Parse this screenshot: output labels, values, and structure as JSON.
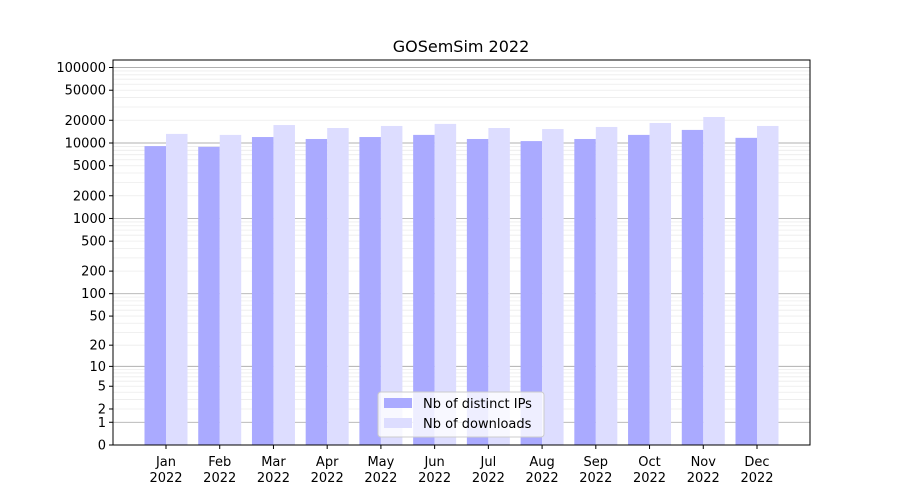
{
  "chart_data": {
    "type": "bar",
    "title": "GOSemSim 2022",
    "xlabel": "",
    "ylabel": "",
    "yscale": "log (symlog-like, value+1)",
    "ylim": [
      0,
      126000
    ],
    "yticks": [
      0,
      1,
      2,
      5,
      10,
      20,
      50,
      100,
      200,
      500,
      1000,
      2000,
      5000,
      10000,
      20000,
      50000,
      100000
    ],
    "grid": true,
    "legend_position": "bottom-center",
    "categories": [
      "Jan\n2022",
      "Feb\n2022",
      "Mar\n2022",
      "Apr\n2022",
      "May\n2022",
      "Jun\n2022",
      "Jul\n2022",
      "Aug\n2022",
      "Sep\n2022",
      "Oct\n2022",
      "Nov\n2022",
      "Dec\n2022"
    ],
    "series": [
      {
        "name": "Nb of distinct IPs",
        "color": "#aaaaff",
        "values": [
          9100,
          8900,
          12000,
          11300,
          12000,
          12800,
          11300,
          10600,
          11300,
          12800,
          14900,
          11700
        ]
      },
      {
        "name": "Nb of downloads",
        "color": "#ddddff",
        "values": [
          13200,
          12800,
          17300,
          15800,
          16800,
          17900,
          15800,
          15300,
          16300,
          18400,
          22100,
          16800
        ]
      }
    ]
  }
}
